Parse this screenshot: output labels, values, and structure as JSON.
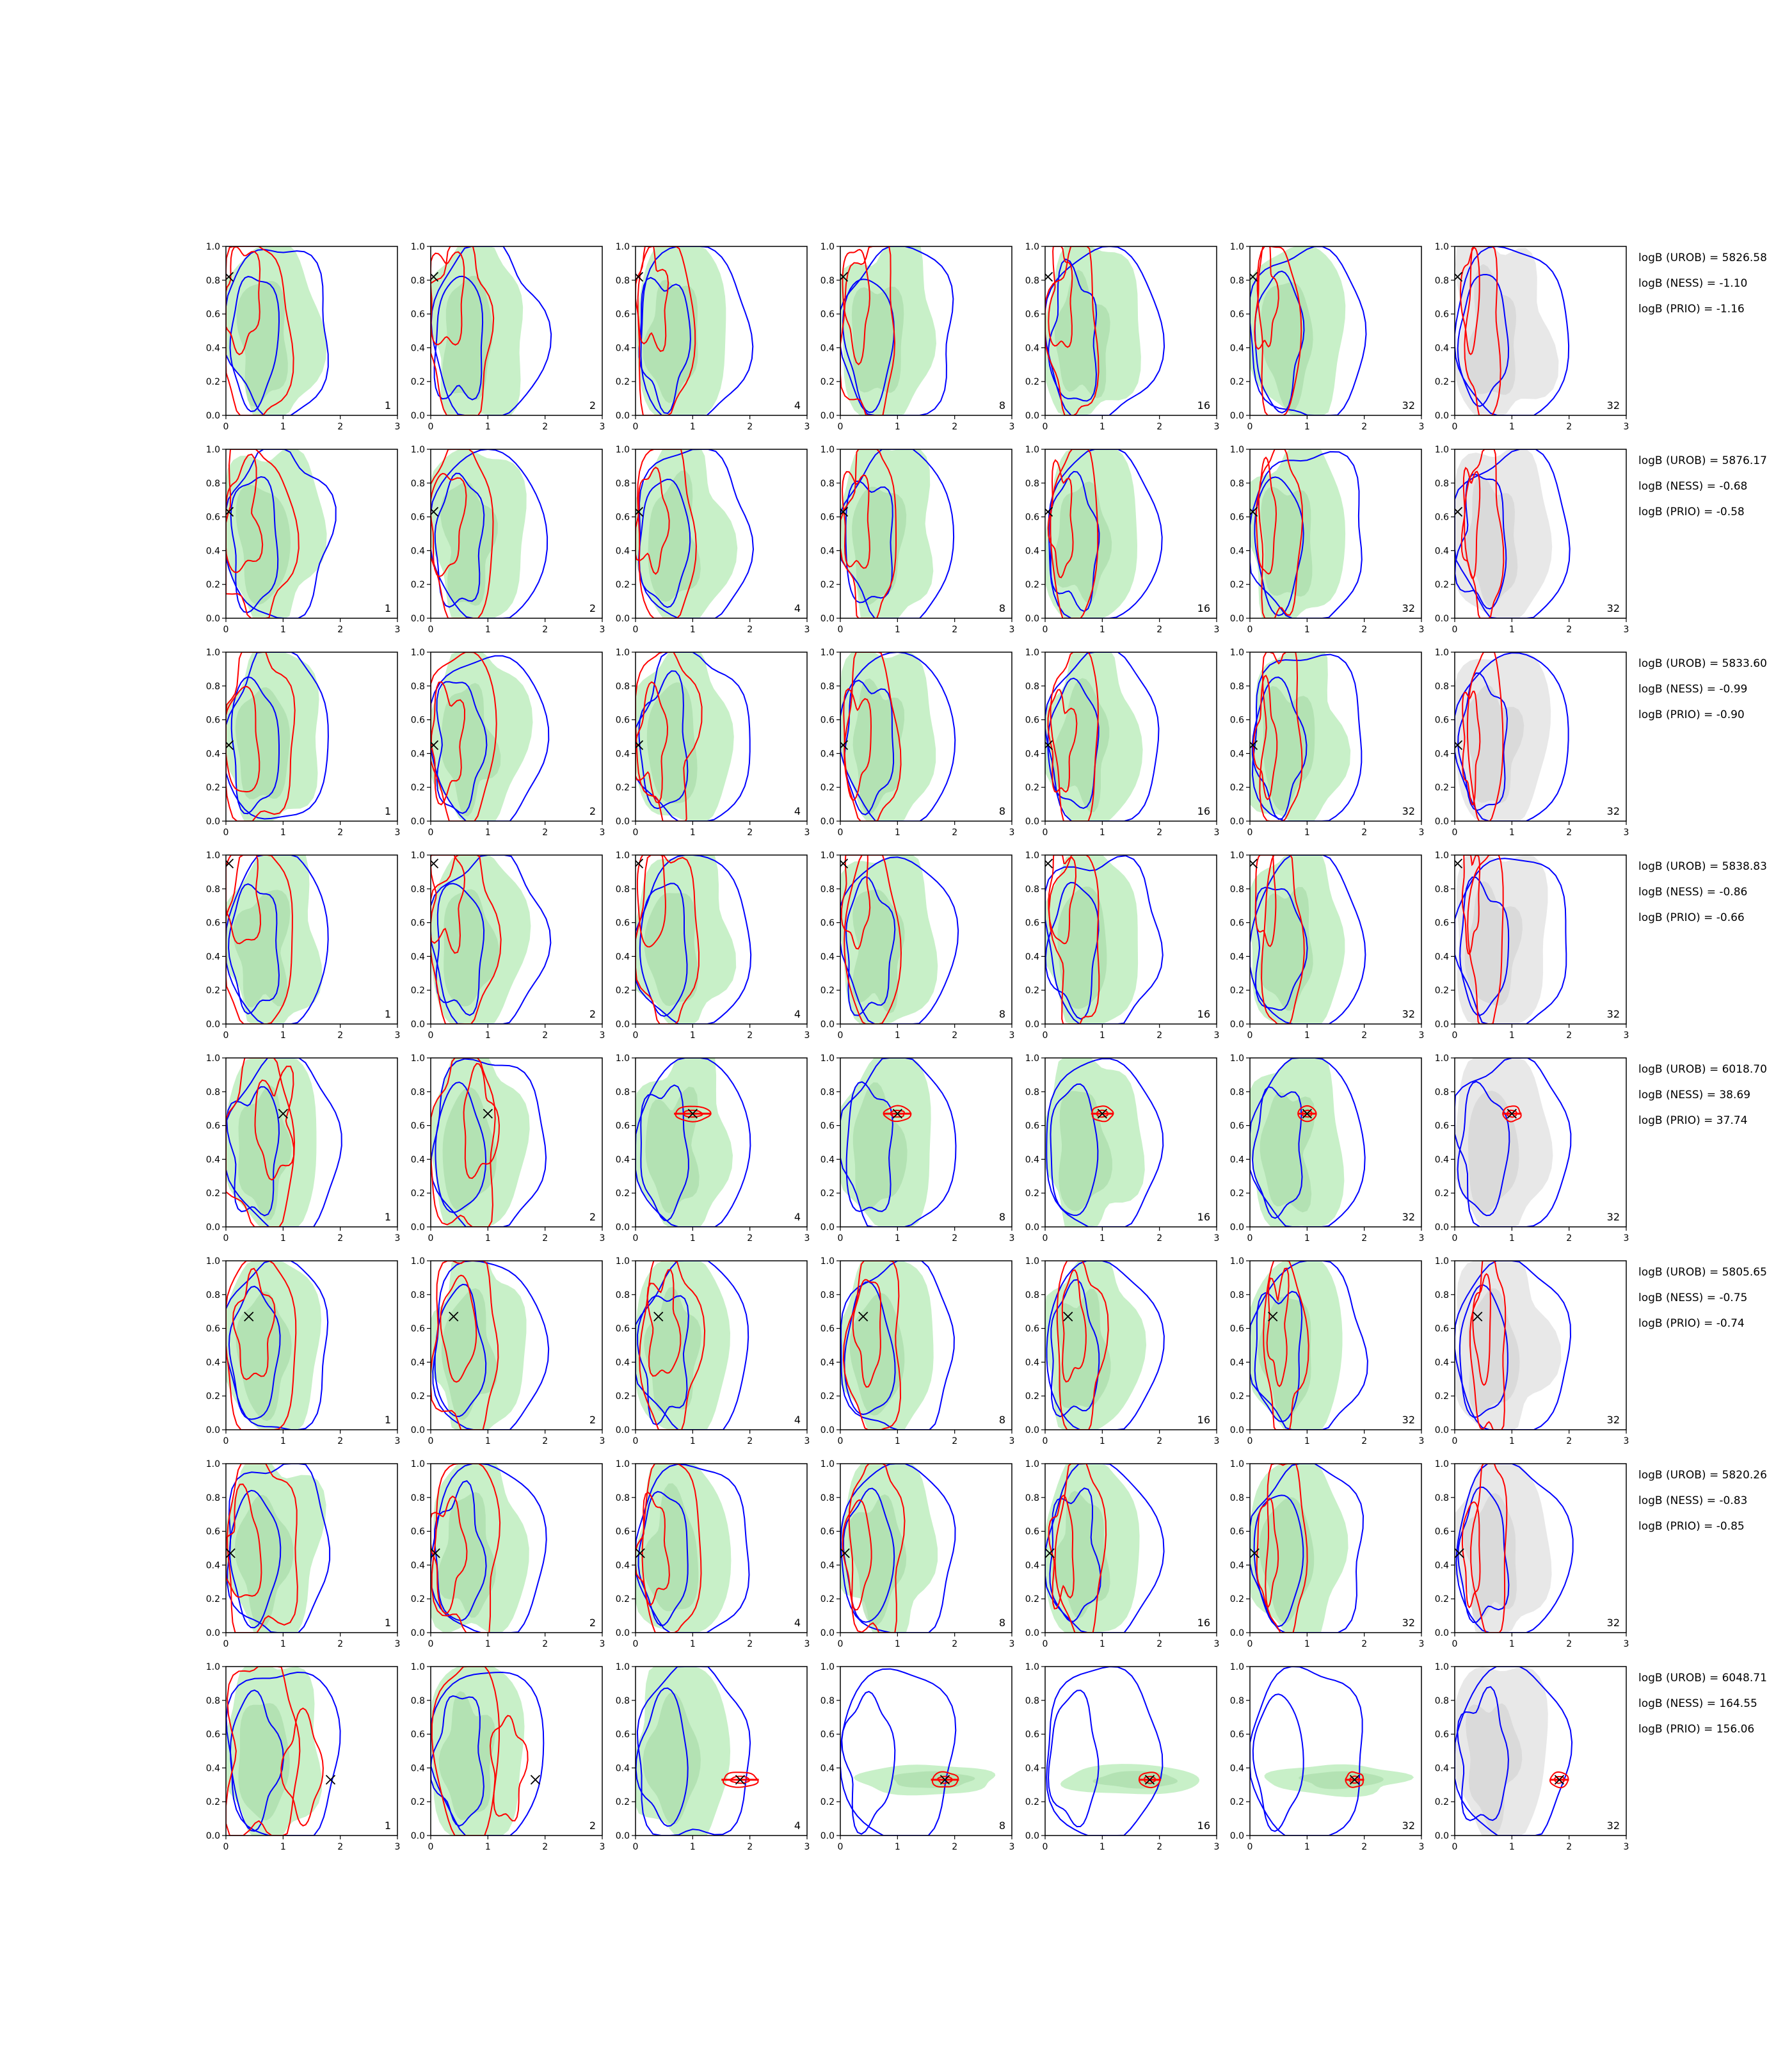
{
  "chart_data": {
    "type": "contour",
    "title": "",
    "xlabel": "",
    "ylabel": "",
    "xlim": [
      0,
      3
    ],
    "ylim": [
      0,
      1
    ],
    "x_ticks": [
      "0",
      "1",
      "2",
      "3"
    ],
    "y_ticks": [
      "0.0",
      "0.2",
      "0.4",
      "0.6",
      "0.8",
      "1.0"
    ],
    "grid": false,
    "legend": "none",
    "colors": {
      "blue_contour": "#0000ff",
      "red_contour": "#ff0000",
      "green_fill_outer": "#c8f0c8",
      "green_fill_inner": "#a9dca9",
      "gray_fill_outer": "#e8e8e8",
      "gray_fill_inner": "#d4d4d4",
      "marker": "#000000"
    },
    "columns": [
      {
        "label": "1",
        "shading": "green"
      },
      {
        "label": "2",
        "shading": "green"
      },
      {
        "label": "4",
        "shading": "green"
      },
      {
        "label": "8",
        "shading": "green"
      },
      {
        "label": "16",
        "shading": "green"
      },
      {
        "label": "32",
        "shading": "green"
      },
      {
        "label": "32",
        "shading": "gray"
      }
    ],
    "rows": [
      {
        "marker": [
          0.05,
          0.82
        ],
        "converge": false,
        "logB": [
          "logB (UROB) = 5826.58",
          "logB (NESS) = -1.10",
          "logB (PRIO) = -1.16"
        ]
      },
      {
        "marker": [
          0.05,
          0.63
        ],
        "converge": false,
        "logB": [
          "logB (UROB) = 5876.17",
          "logB (NESS) = -0.68",
          "logB (PRIO) = -0.58"
        ]
      },
      {
        "marker": [
          0.05,
          0.45
        ],
        "converge": false,
        "logB": [
          "logB (UROB) = 5833.60",
          "logB (NESS) = -0.99",
          "logB (PRIO) = -0.90"
        ]
      },
      {
        "marker": [
          0.05,
          0.95
        ],
        "converge": false,
        "logB": [
          "logB (UROB) = 5838.83",
          "logB (NESS) = -0.86",
          "logB (PRIO) = -0.66"
        ]
      },
      {
        "marker": [
          1.0,
          0.67
        ],
        "converge": true,
        "logB": [
          "logB (UROB) = 6018.70",
          "logB (NESS) = 38.69",
          "logB (PRIO) = 37.74"
        ]
      },
      {
        "marker": [
          0.4,
          0.67
        ],
        "converge": false,
        "logB": [
          "logB (UROB) = 5805.65",
          "logB (NESS) = -0.75",
          "logB (PRIO) = -0.74"
        ]
      },
      {
        "marker": [
          0.08,
          0.47
        ],
        "converge": false,
        "logB": [
          "logB (UROB) = 5820.26",
          "logB (NESS) = -0.83",
          "logB (PRIO) = -0.85"
        ]
      },
      {
        "marker": [
          1.83,
          0.33
        ],
        "converge": true,
        "logB": [
          "logB (UROB) = 6048.71",
          "logB (NESS) = 164.55",
          "logB (PRIO) = 156.06"
        ]
      }
    ]
  }
}
